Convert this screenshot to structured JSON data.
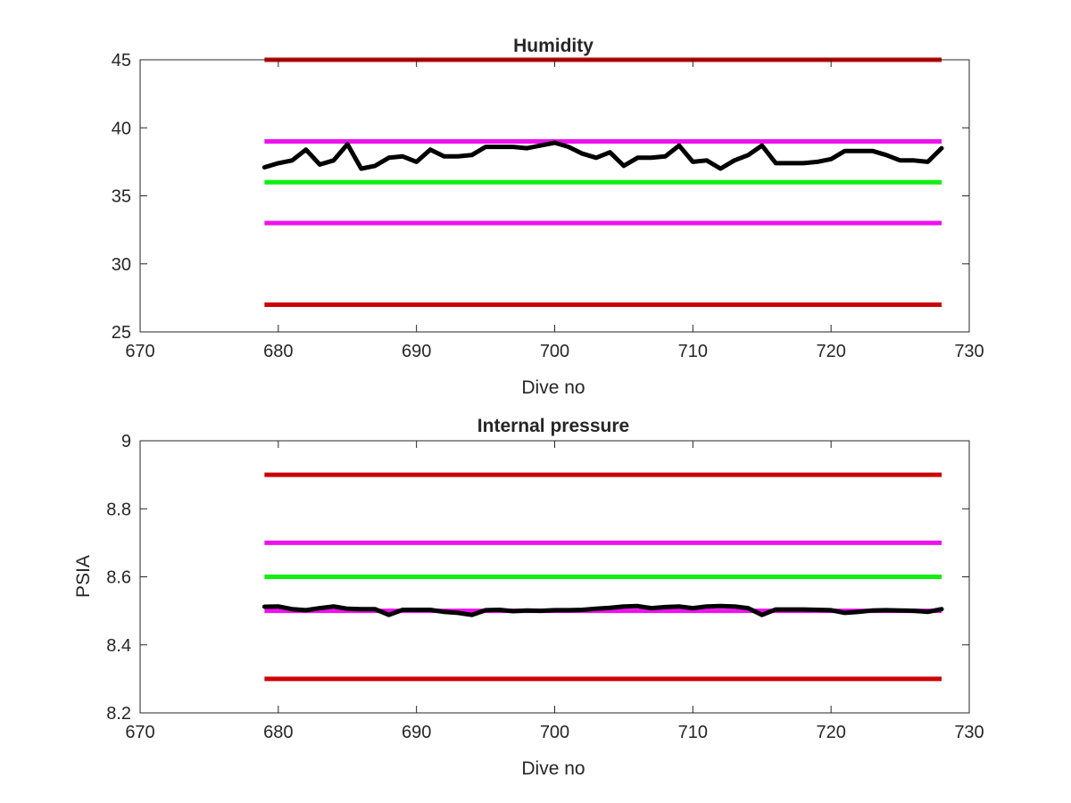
{
  "chart_data": [
    {
      "type": "line",
      "title": "Humidity",
      "xlabel": "Dive no",
      "ylabel": "",
      "xlim": [
        670,
        730
      ],
      "ylim": [
        25,
        45
      ],
      "xticks": [
        "670",
        "680",
        "690",
        "700",
        "710",
        "720",
        "730"
      ],
      "yticks": [
        "25",
        "30",
        "35",
        "40",
        "45"
      ],
      "grid": false,
      "reference_lines": [
        {
          "y": 45,
          "x": [
            679,
            728
          ],
          "color": "#cc0000"
        },
        {
          "y": 39,
          "x": [
            679,
            728
          ],
          "color": "#ee11ee"
        },
        {
          "y": 36,
          "x": [
            679,
            728
          ],
          "color": "#11ee11"
        },
        {
          "y": 33,
          "x": [
            679,
            728
          ],
          "color": "#ee11ee"
        },
        {
          "y": 27,
          "x": [
            679,
            728
          ],
          "color": "#cc0000"
        }
      ],
      "series": [
        {
          "color": "#000000",
          "x": [
            679,
            680,
            681,
            682,
            683,
            684,
            685,
            686,
            687,
            688,
            689,
            690,
            691,
            692,
            693,
            694,
            695,
            696,
            697,
            698,
            699,
            700,
            701,
            702,
            703,
            704,
            705,
            706,
            707,
            708,
            709,
            710,
            711,
            712,
            713,
            714,
            715,
            716,
            717,
            718,
            719,
            720,
            721,
            722,
            723,
            724,
            725,
            726,
            727,
            728
          ],
          "values": [
            37.1,
            37.4,
            37.6,
            38.4,
            37.3,
            37.6,
            38.8,
            37.0,
            37.2,
            37.8,
            37.9,
            37.5,
            38.4,
            37.9,
            37.9,
            38.0,
            38.6,
            38.6,
            38.6,
            38.5,
            38.7,
            38.9,
            38.6,
            38.1,
            37.8,
            38.2,
            37.2,
            37.8,
            37.8,
            37.9,
            38.7,
            37.5,
            37.6,
            37.0,
            37.6,
            38.0,
            38.7,
            37.4,
            37.4,
            37.4,
            37.5,
            37.7,
            38.3,
            38.3,
            38.3,
            38.0,
            37.6,
            37.6,
            37.5,
            38.5
          ]
        }
      ]
    },
    {
      "type": "line",
      "title": "Internal pressure",
      "xlabel": "Dive no",
      "ylabel": "PSIA",
      "xlim": [
        670,
        730
      ],
      "ylim": [
        8.2,
        9.0
      ],
      "xticks": [
        "670",
        "680",
        "690",
        "700",
        "710",
        "720",
        "730"
      ],
      "yticks": [
        "8.2",
        "8.4",
        "8.6",
        "8.8",
        "9"
      ],
      "grid": false,
      "reference_lines": [
        {
          "y": 8.9,
          "x": [
            679,
            728
          ],
          "color": "#cc0000"
        },
        {
          "y": 8.7,
          "x": [
            679,
            728
          ],
          "color": "#ee11ee"
        },
        {
          "y": 8.6,
          "x": [
            679,
            728
          ],
          "color": "#11ee11"
        },
        {
          "y": 8.5,
          "x": [
            679,
            728
          ],
          "color": "#ee11ee"
        },
        {
          "y": 8.3,
          "x": [
            679,
            728
          ],
          "color": "#cc0000"
        }
      ],
      "series": [
        {
          "color": "#000000",
          "x": [
            679,
            680,
            681,
            682,
            683,
            684,
            685,
            686,
            687,
            688,
            689,
            690,
            691,
            692,
            693,
            694,
            695,
            696,
            697,
            698,
            699,
            700,
            701,
            702,
            703,
            704,
            705,
            706,
            707,
            708,
            709,
            710,
            711,
            712,
            713,
            714,
            715,
            716,
            717,
            718,
            719,
            720,
            721,
            722,
            723,
            724,
            725,
            726,
            727,
            728
          ],
          "values": [
            8.512,
            8.513,
            8.505,
            8.502,
            8.508,
            8.513,
            8.506,
            8.505,
            8.505,
            8.488,
            8.503,
            8.503,
            8.503,
            8.497,
            8.494,
            8.488,
            8.502,
            8.503,
            8.499,
            8.501,
            8.5,
            8.502,
            8.502,
            8.503,
            8.506,
            8.509,
            8.513,
            8.514,
            8.508,
            8.511,
            8.513,
            8.508,
            8.513,
            8.514,
            8.513,
            8.508,
            8.488,
            8.504,
            8.504,
            8.504,
            8.503,
            8.502,
            8.494,
            8.497,
            8.501,
            8.502,
            8.501,
            8.5,
            8.497,
            8.505
          ]
        }
      ]
    }
  ]
}
